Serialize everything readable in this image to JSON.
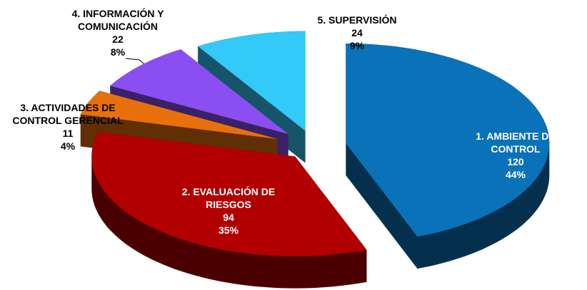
{
  "chart_data": {
    "type": "pie",
    "categories": [
      "1. AMBIENTE DE CONTROL",
      "2. EVALUACIÓN DE RIESGOS",
      "3. ACTIVIDADES DE CONTROL GERENCIAL",
      "4. INFORMACIÓN Y COMUNICACIÓN",
      "5. SUPERVISIÓN"
    ],
    "values": [
      120,
      94,
      11,
      22,
      24
    ],
    "value_labels": [
      "44%",
      "35%",
      "4%",
      "8%",
      "9%"
    ],
    "colors": [
      "#0a72b8",
      "#b20000",
      "#e8700c",
      "#8b4ef2",
      "#33c9f9"
    ]
  }
}
